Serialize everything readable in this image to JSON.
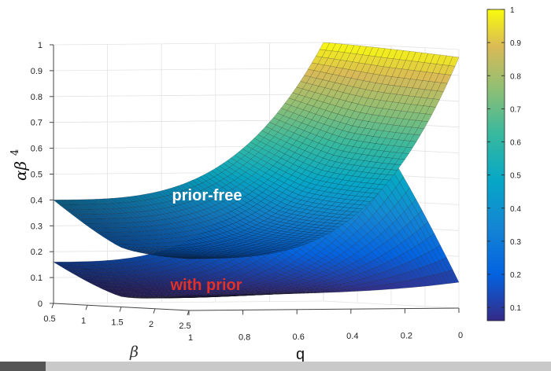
{
  "chart_data": {
    "type": "surface",
    "title": "",
    "zlabel": "αβ",
    "zlabel_superscript": "4",
    "xlabel": "β",
    "ylabel": "q",
    "z_ticks": [
      "0",
      "0.1",
      "0.2",
      "0.3",
      "0.4",
      "0.5",
      "0.6",
      "0.7",
      "0.8",
      "0.9",
      "1"
    ],
    "z_range": [
      0,
      1
    ],
    "beta_ticks": [
      "0.5",
      "1",
      "1.5",
      "2",
      "2.5"
    ],
    "beta_range": [
      0.5,
      2.5
    ],
    "q_ticks": [
      "1",
      "0.8",
      "0.6",
      "0.4",
      "0.2",
      "0"
    ],
    "q_range": [
      1,
      0
    ],
    "colormap": "parula",
    "colorbar_ticks": [
      "0.1",
      "0.2",
      "0.3",
      "0.4",
      "0.5",
      "0.6",
      "0.7",
      "0.8",
      "0.9",
      "1"
    ],
    "colorbar_range": [
      0.06,
      1
    ],
    "grid": true,
    "surfaces": [
      {
        "name": "prior-free",
        "label_color": "#ffffff",
        "corners": {
          "beta_0.5_q_1": 0.4,
          "beta_2.5_q_1": 0.2,
          "beta_0.5_q_0": 1.0,
          "beta_2.5_q_0": 0.97
        }
      },
      {
        "name": "with prior",
        "label_color": "#e0302a",
        "corners": {
          "beta_0.5_q_1": 0.16,
          "beta_2.5_q_1": 0.06,
          "beta_0.5_q_0": 0.9,
          "beta_2.5_q_0": 0.1
        }
      }
    ]
  },
  "colors": {
    "parula_low": "#352a87",
    "parula_mid": "#21b2a9",
    "parula_high": "#f9fb0e",
    "mesh": "#101010"
  }
}
